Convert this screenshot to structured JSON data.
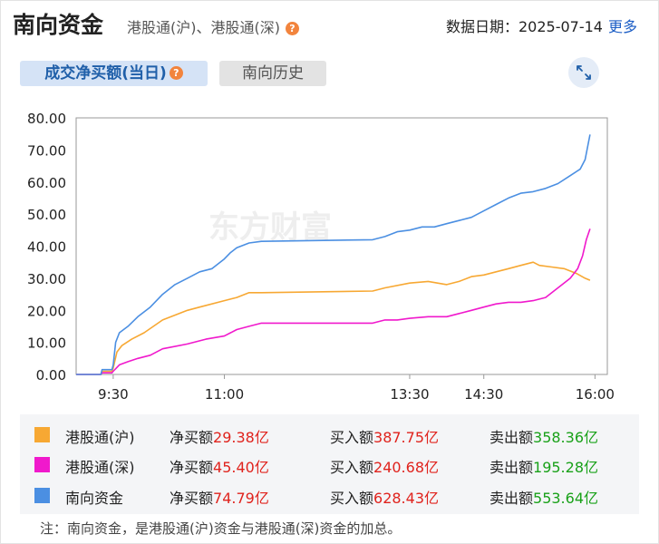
{
  "header": {
    "title": "南向资金",
    "subtitle": "港股通(沪)、港股通(深)",
    "help_icon": "?",
    "date_label": "数据日期：2025-07-14",
    "more_link": "更多"
  },
  "tabs": [
    {
      "label": "成交净买额(当日)",
      "active": true
    },
    {
      "label": "南向历史",
      "active": false
    }
  ],
  "expand_icon": "expand-icon",
  "watermark": "东方财富",
  "chart_data": {
    "type": "line",
    "x_ticks": [
      "9:30",
      "11:00",
      "13:30",
      "14:30",
      "16:00"
    ],
    "y_ticks": [
      "80.00",
      "70.00",
      "60.00",
      "50.00",
      "40.00",
      "30.00",
      "20.00",
      "10.00",
      "0.00"
    ],
    "ylim": [
      0,
      80
    ],
    "x_domain_minutes": [
      "9:00",
      "16:10"
    ],
    "grid": false,
    "series": [
      {
        "name": "港股通(沪)",
        "color": "#f7a833",
        "points": [
          [
            "9:00",
            0
          ],
          [
            "9:20",
            0
          ],
          [
            "9:21",
            1
          ],
          [
            "9:29",
            1
          ],
          [
            "9:30",
            2
          ],
          [
            "9:33",
            7
          ],
          [
            "9:37",
            9
          ],
          [
            "9:45",
            11
          ],
          [
            "9:55",
            13
          ],
          [
            "10:10",
            17
          ],
          [
            "10:30",
            20
          ],
          [
            "10:40",
            21
          ],
          [
            "11:00",
            23
          ],
          [
            "11:10",
            24
          ],
          [
            "11:20",
            25.5
          ],
          [
            "11:30",
            25.5
          ],
          [
            "13:00",
            26
          ],
          [
            "13:10",
            27
          ],
          [
            "13:30",
            28.5
          ],
          [
            "13:45",
            29
          ],
          [
            "14:00",
            28
          ],
          [
            "14:10",
            29
          ],
          [
            "14:20",
            30.5
          ],
          [
            "14:30",
            31
          ],
          [
            "14:40",
            32
          ],
          [
            "14:50",
            33
          ],
          [
            "15:00",
            34
          ],
          [
            "15:10",
            35
          ],
          [
            "15:15",
            34
          ],
          [
            "15:25",
            33.5
          ],
          [
            "15:35",
            33
          ],
          [
            "15:45",
            31.5
          ],
          [
            "15:52",
            30
          ],
          [
            "15:56",
            29.38
          ]
        ]
      },
      {
        "name": "港股通(深)",
        "color": "#f019cc",
        "points": [
          [
            "9:00",
            0
          ],
          [
            "9:20",
            0
          ],
          [
            "9:21",
            0.5
          ],
          [
            "9:29",
            0.5
          ],
          [
            "9:30",
            1
          ],
          [
            "9:35",
            3
          ],
          [
            "9:42",
            4
          ],
          [
            "9:50",
            5
          ],
          [
            "10:00",
            6
          ],
          [
            "10:10",
            8
          ],
          [
            "10:30",
            9.5
          ],
          [
            "10:45",
            11
          ],
          [
            "11:00",
            12
          ],
          [
            "11:10",
            14
          ],
          [
            "11:20",
            15
          ],
          [
            "11:30",
            16
          ],
          [
            "13:00",
            16
          ],
          [
            "13:10",
            17
          ],
          [
            "13:20",
            17
          ],
          [
            "13:30",
            17.5
          ],
          [
            "13:45",
            18
          ],
          [
            "14:00",
            18
          ],
          [
            "14:10",
            19
          ],
          [
            "14:20",
            20
          ],
          [
            "14:30",
            21
          ],
          [
            "14:40",
            22
          ],
          [
            "14:50",
            22.5
          ],
          [
            "15:00",
            22.5
          ],
          [
            "15:10",
            23
          ],
          [
            "15:20",
            24
          ],
          [
            "15:30",
            27
          ],
          [
            "15:40",
            30
          ],
          [
            "15:46",
            33
          ],
          [
            "15:50",
            37
          ],
          [
            "15:53",
            42
          ],
          [
            "15:56",
            45.4
          ]
        ]
      },
      {
        "name": "南向资金",
        "color": "#4b8fe2",
        "points": [
          [
            "9:00",
            0
          ],
          [
            "9:20",
            0
          ],
          [
            "9:21",
            1.5
          ],
          [
            "9:29",
            1.5
          ],
          [
            "9:30",
            3
          ],
          [
            "9:32",
            10
          ],
          [
            "9:35",
            13
          ],
          [
            "9:42",
            15
          ],
          [
            "9:50",
            18
          ],
          [
            "10:00",
            21
          ],
          [
            "10:10",
            25
          ],
          [
            "10:20",
            28
          ],
          [
            "10:30",
            30
          ],
          [
            "10:40",
            32
          ],
          [
            "10:50",
            33
          ],
          [
            "11:00",
            36
          ],
          [
            "11:05",
            38
          ],
          [
            "11:10",
            39.5
          ],
          [
            "11:20",
            41
          ],
          [
            "11:30",
            41.5
          ],
          [
            "13:00",
            42
          ],
          [
            "13:10",
            43
          ],
          [
            "13:20",
            44.5
          ],
          [
            "13:30",
            45
          ],
          [
            "13:40",
            46
          ],
          [
            "13:50",
            46
          ],
          [
            "14:00",
            47
          ],
          [
            "14:10",
            48
          ],
          [
            "14:20",
            49
          ],
          [
            "14:30",
            51
          ],
          [
            "14:40",
            53
          ],
          [
            "14:50",
            55
          ],
          [
            "15:00",
            56.5
          ],
          [
            "15:10",
            57
          ],
          [
            "15:20",
            58
          ],
          [
            "15:30",
            59.5
          ],
          [
            "15:40",
            62
          ],
          [
            "15:48",
            64
          ],
          [
            "15:52",
            67
          ],
          [
            "15:56",
            74.79
          ]
        ]
      }
    ]
  },
  "legend": [
    {
      "name": "港股通(沪)",
      "color": "#f7a833",
      "net_label": "净买额",
      "net_value": "29.38亿",
      "buy_label": "买入额",
      "buy_value": "387.75亿",
      "sell_label": "卖出额",
      "sell_value": "358.36亿"
    },
    {
      "name": "港股通(深)",
      "color": "#f019cc",
      "net_label": "净买额",
      "net_value": "45.40亿",
      "buy_label": "买入额",
      "buy_value": "240.68亿",
      "sell_label": "卖出额",
      "sell_value": "195.28亿"
    },
    {
      "name": "南向资金",
      "color": "#4b8fe2",
      "net_label": "净买额",
      "net_value": "74.79亿",
      "buy_label": "买入额",
      "buy_value": "628.43亿",
      "sell_label": "卖出额",
      "sell_value": "553.64亿"
    }
  ],
  "note": "注：南向资金，是港股通(沪)资金与港股通(深)资金的加总。"
}
